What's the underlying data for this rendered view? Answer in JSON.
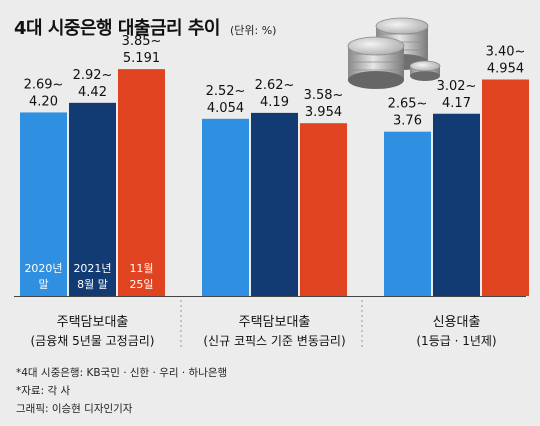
{
  "header": {
    "title": "4대 시중은행 대출금리 추이",
    "unit": "(단위: %)"
  },
  "colors": {
    "background": "#ececec",
    "series_2020": "#2f8fe0",
    "series_2021": "#123a73",
    "series_nov": "#e0431f"
  },
  "chart_data": {
    "type": "bar",
    "title": "4대 시중은행 대출금리 추이",
    "unit": "(단위: %)",
    "categories": [
      {
        "name": "주택담보대출",
        "sub": "(금융채 5년물 고정금리)"
      },
      {
        "name": "주택담보대출",
        "sub": "(신규 코픽스 기준 변동금리)"
      },
      {
        "name": "신용대출",
        "sub": "(1등급 · 1년제)"
      }
    ],
    "series": [
      {
        "name": "2020년 말",
        "label_lines": [
          "2020년",
          "말"
        ],
        "low": [
          2.69,
          2.52,
          2.65
        ],
        "high": [
          4.2,
          4.054,
          3.76
        ],
        "labels_top": [
          "2.69~",
          "2.52~",
          "2.65~"
        ],
        "labels_bottom": [
          "4.20",
          "4.054",
          "3.76"
        ]
      },
      {
        "name": "2021년 8월 말",
        "label_lines": [
          "2021년",
          "8월 말"
        ],
        "low": [
          2.92,
          2.62,
          3.02
        ],
        "high": [
          4.42,
          4.19,
          4.17
        ],
        "labels_top": [
          "2.92~",
          "2.62~",
          "3.02~"
        ],
        "labels_bottom": [
          "4.42",
          "4.19",
          "4.17"
        ]
      },
      {
        "name": "11월 25일",
        "label_lines": [
          "11월",
          "25일"
        ],
        "low": [
          3.85,
          3.58,
          3.4
        ],
        "high": [
          5.191,
          3.954,
          4.954
        ],
        "labels_top": [
          "3.85~",
          "3.58~",
          "3.40~"
        ],
        "labels_bottom": [
          "5.191",
          "3.954",
          "4.954"
        ]
      }
    ],
    "value_plotted": "high",
    "ylim": [
      0,
      5.4
    ],
    "grid": false,
    "legend": "inside-bars"
  },
  "footer": {
    "note1": "*4대 시중은행: KB국민 · 신한 · 우리 · 하나은행",
    "note2": "*자료: 각 사",
    "note3": "그래픽: 이승현 디자인기자"
  }
}
